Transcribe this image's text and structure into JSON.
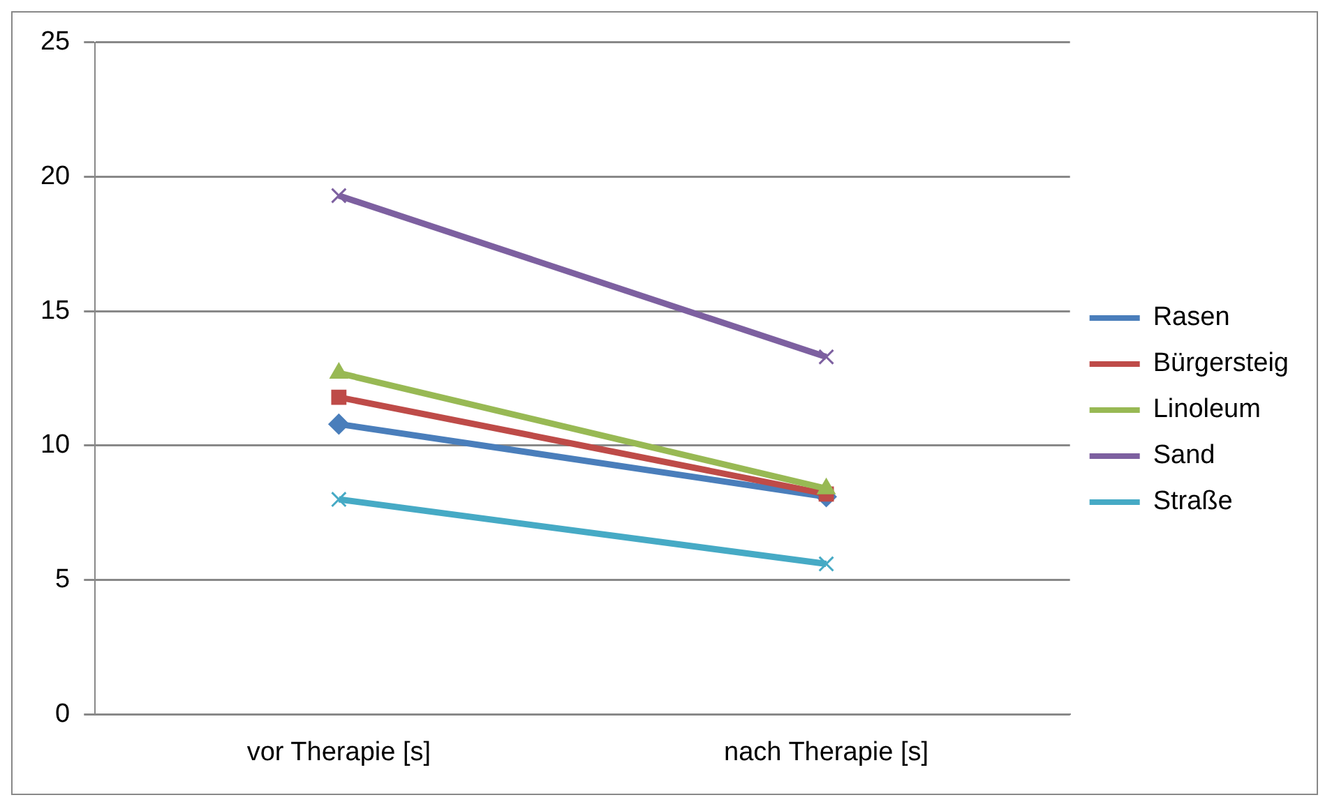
{
  "chart_data": {
    "type": "line",
    "categories": [
      "vor Therapie [s]",
      "nach Therapie [s]"
    ],
    "series": [
      {
        "name": "Rasen",
        "color": "#4a7ebb",
        "marker": "diamond",
        "values": [
          10.8,
          8.1
        ]
      },
      {
        "name": "Bürgersteig",
        "color": "#be4b48",
        "marker": "square",
        "values": [
          11.8,
          8.2
        ]
      },
      {
        "name": "Linoleum",
        "color": "#98b954",
        "marker": "triangle",
        "values": [
          12.7,
          8.4
        ]
      },
      {
        "name": "Sand",
        "color": "#7d60a0",
        "marker": "cross",
        "values": [
          19.3,
          13.3
        ]
      },
      {
        "name": "Straße",
        "color": "#46aac5",
        "marker": "cross",
        "values": [
          8.0,
          5.6
        ]
      }
    ],
    "ylim": [
      0,
      25
    ],
    "yticks": [
      0,
      5,
      10,
      15,
      20,
      25
    ],
    "grid": "y",
    "legend": "right"
  }
}
